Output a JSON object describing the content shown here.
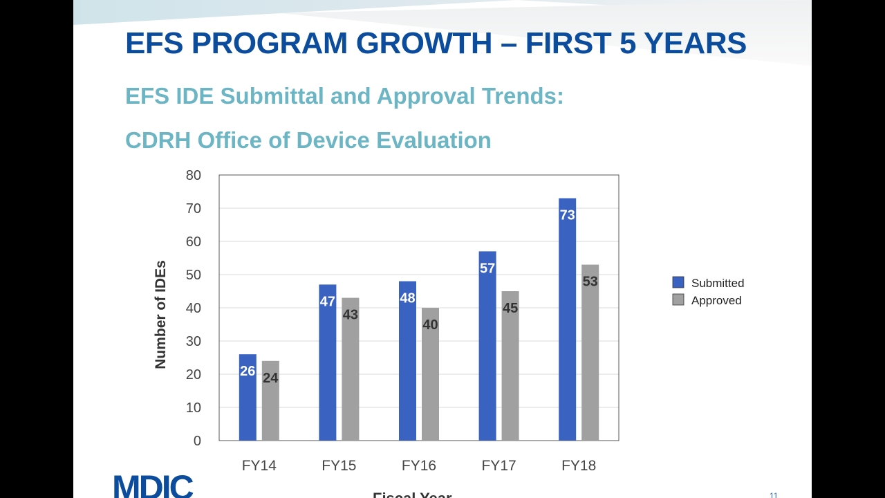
{
  "slide": {
    "title": "EFS PROGRAM GROWTH – FIRST 5 YEARS",
    "subtitle_line1": "EFS IDE Submittal and Approval Trends:",
    "subtitle_line2": "CDRH Office of Device Evaluation",
    "logo_text": "MDIC",
    "page_number": "11"
  },
  "chart_data": {
    "type": "bar",
    "categories": [
      "FY14",
      "FY15",
      "FY16",
      "FY17",
      "FY18"
    ],
    "series": [
      {
        "name": "Submitted",
        "values": [
          26,
          47,
          48,
          57,
          73
        ],
        "color": "#3a62c0"
      },
      {
        "name": "Approved",
        "values": [
          24,
          43,
          40,
          45,
          53
        ],
        "color": "#a0a0a0"
      }
    ],
    "xlabel": "Fiscal Year",
    "ylabel": "Number of IDEs",
    "ylim": [
      0,
      80
    ],
    "yticks": [
      0,
      10,
      20,
      30,
      40,
      50,
      60,
      70,
      80
    ],
    "grid": true,
    "legend": "right"
  }
}
